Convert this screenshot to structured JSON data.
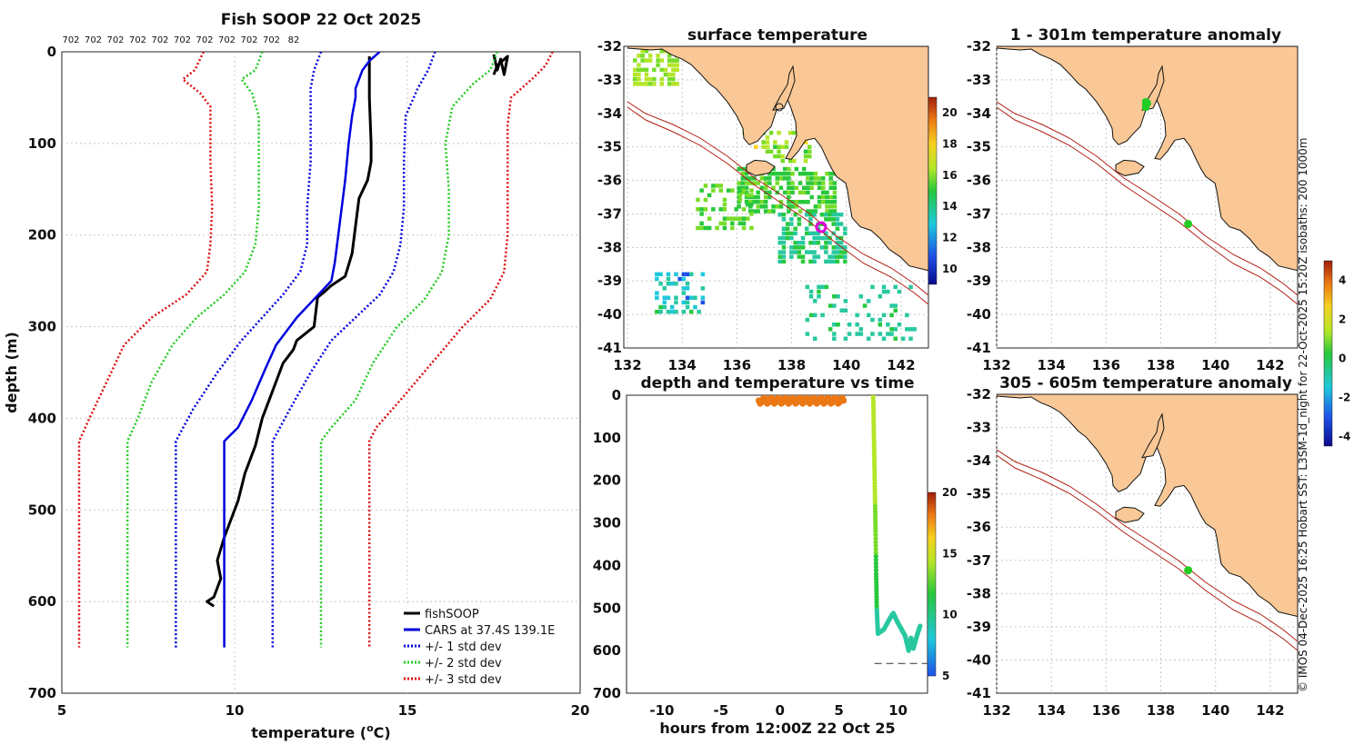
{
  "colors": {
    "fishsoop": "#000000",
    "cars": "#0000dd",
    "std1": "#0000dd",
    "std2": "#22cc22",
    "std3": "#dd1111",
    "land": "#f9c896",
    "isobath": "#b01c10",
    "marker_green": "#22cc22",
    "marker_magenta": "#dd00dd",
    "grid": "#c8c8c8"
  },
  "credit_text": "© IMOS 04-Dec-2025 16:25 Hobart SST: L3SM-1d_night for 22-Oct-2025 15:20Z isobaths: 200  1000m",
  "chart_data": [
    {
      "id": "profile",
      "type": "line",
      "title": "Fish SOOP 22 Oct 2025",
      "xlabel": "temperature (°C)",
      "xlabel_main": "temperature (",
      "xlabel_sup": "o",
      "xlabel_end": "C)",
      "ylabel": "depth (m)",
      "xlim": [
        5,
        20
      ],
      "ylim": [
        0,
        700
      ],
      "xticks": [
        5,
        10,
        15,
        20
      ],
      "yticks": [
        0,
        100,
        200,
        300,
        400,
        500,
        600,
        700
      ],
      "top_counts": [
        "702",
        "702",
        "702",
        "702",
        "702",
        "702",
        "702",
        "702",
        "702",
        "702",
        "82"
      ],
      "legend": [
        "fishSOOP",
        "CARS at 37.4S 139.1E",
        "+/- 1 std dev",
        "+/- 2 std dev",
        "+/- 3 std dev"
      ],
      "series": [
        {
          "name": "fishSOOP",
          "style": "solid",
          "color_key": "fishsoop",
          "width": 3,
          "points": [
            [
              13.9,
              5
            ],
            [
              13.9,
              50
            ],
            [
              13.95,
              100
            ],
            [
              13.95,
              120
            ],
            [
              13.85,
              140
            ],
            [
              13.6,
              160
            ],
            [
              13.5,
              190
            ],
            [
              13.4,
              220
            ],
            [
              13.2,
              245
            ],
            [
              12.8,
              255
            ],
            [
              12.6,
              262
            ],
            [
              12.4,
              268
            ],
            [
              12.3,
              300
            ],
            [
              11.8,
              315
            ],
            [
              11.7,
              325
            ],
            [
              11.4,
              340
            ],
            [
              11.2,
              360
            ],
            [
              11.0,
              380
            ],
            [
              10.8,
              400
            ],
            [
              10.6,
              430
            ],
            [
              10.3,
              460
            ],
            [
              10.1,
              490
            ],
            [
              9.9,
              510
            ],
            [
              9.7,
              530
            ],
            [
              9.5,
              555
            ],
            [
              9.6,
              575
            ],
            [
              9.4,
              595
            ],
            [
              9.2,
              600
            ],
            [
              9.4,
              605
            ]
          ]
        },
        {
          "name": "fishSOOP_surface",
          "style": "solid",
          "color_key": "fishsoop",
          "width": 3,
          "points": [
            [
              17.5,
              3
            ],
            [
              17.6,
              20
            ],
            [
              17.7,
              8
            ],
            [
              17.8,
              25
            ],
            [
              17.9,
              5
            ],
            [
              17.6,
              15
            ],
            [
              17.5,
              25
            ]
          ]
        },
        {
          "name": "CARS at 37.4S 139.1E",
          "style": "solid",
          "color_key": "cars",
          "width": 2.5,
          "points": [
            [
              14.2,
              0
            ],
            [
              13.9,
              10
            ],
            [
              13.7,
              20
            ],
            [
              13.6,
              30
            ],
            [
              13.5,
              40
            ],
            [
              13.5,
              50
            ],
            [
              13.4,
              70
            ],
            [
              13.3,
              100
            ],
            [
              13.2,
              140
            ],
            [
              13.1,
              170
            ],
            [
              13.0,
              200
            ],
            [
              12.9,
              230
            ],
            [
              12.8,
              250
            ],
            [
              12.3,
              270
            ],
            [
              11.8,
              290
            ],
            [
              11.5,
              305
            ],
            [
              11.2,
              320
            ],
            [
              10.9,
              345
            ],
            [
              10.5,
              380
            ],
            [
              10.1,
              410
            ],
            [
              9.7,
              425
            ],
            [
              9.7,
              500
            ],
            [
              9.7,
              650
            ]
          ]
        },
        {
          "name": "-1 std",
          "style": "dotted",
          "color_key": "std1",
          "width": 2.5,
          "points": [
            [
              12.5,
              0
            ],
            [
              12.3,
              20
            ],
            [
              12.2,
              40
            ],
            [
              12.2,
              70
            ],
            [
              12.2,
              120
            ],
            [
              12.1,
              170
            ],
            [
              12.1,
              210
            ],
            [
              11.9,
              240
            ],
            [
              11.4,
              265
            ],
            [
              10.8,
              290
            ],
            [
              10.2,
              315
            ],
            [
              9.5,
              350
            ],
            [
              8.8,
              390
            ],
            [
              8.3,
              425
            ],
            [
              8.3,
              650
            ]
          ]
        },
        {
          "name": "+1 std",
          "style": "dotted",
          "color_key": "std1",
          "width": 2.5,
          "points": [
            [
              15.8,
              0
            ],
            [
              15.6,
              20
            ],
            [
              15.3,
              40
            ],
            [
              14.95,
              70
            ],
            [
              14.9,
              120
            ],
            [
              14.9,
              170
            ],
            [
              14.8,
              210
            ],
            [
              14.6,
              240
            ],
            [
              14.2,
              265
            ],
            [
              13.5,
              290
            ],
            [
              12.8,
              315
            ],
            [
              12.2,
              350
            ],
            [
              11.6,
              390
            ],
            [
              11.1,
              425
            ],
            [
              11.1,
              650
            ]
          ]
        },
        {
          "name": "-2 std",
          "style": "dotted",
          "color_key": "std2",
          "width": 2.5,
          "points": [
            [
              10.8,
              0
            ],
            [
              10.6,
              20
            ],
            [
              10.2,
              30
            ],
            [
              10.5,
              45
            ],
            [
              10.7,
              70
            ],
            [
              10.7,
              120
            ],
            [
              10.7,
              170
            ],
            [
              10.6,
              210
            ],
            [
              10.3,
              240
            ],
            [
              9.7,
              265
            ],
            [
              8.9,
              290
            ],
            [
              8.2,
              320
            ],
            [
              7.6,
              360
            ],
            [
              7.2,
              400
            ],
            [
              6.9,
              425
            ],
            [
              6.9,
              650
            ]
          ]
        },
        {
          "name": "+2 std",
          "style": "dotted",
          "color_key": "std2",
          "width": 2.5,
          "points": [
            [
              17.6,
              0
            ],
            [
              17.4,
              20
            ],
            [
              16.9,
              35
            ],
            [
              16.3,
              60
            ],
            [
              16.1,
              100
            ],
            [
              16.2,
              150
            ],
            [
              16.2,
              200
            ],
            [
              16.0,
              240
            ],
            [
              15.5,
              270
            ],
            [
              14.7,
              300
            ],
            [
              14.0,
              340
            ],
            [
              13.5,
              380
            ],
            [
              12.8,
              410
            ],
            [
              12.5,
              425
            ],
            [
              12.5,
              650
            ]
          ]
        },
        {
          "name": "-3 std",
          "style": "dotted",
          "color_key": "std3",
          "width": 2.5,
          "points": [
            [
              9.1,
              0
            ],
            [
              8.85,
              20
            ],
            [
              8.5,
              30
            ],
            [
              9.0,
              45
            ],
            [
              9.3,
              60
            ],
            [
              9.3,
              120
            ],
            [
              9.35,
              170
            ],
            [
              9.3,
              210
            ],
            [
              9.2,
              240
            ],
            [
              8.6,
              265
            ],
            [
              7.6,
              290
            ],
            [
              6.8,
              320
            ],
            [
              6.3,
              360
            ],
            [
              5.8,
              400
            ],
            [
              5.5,
              425
            ],
            [
              5.5,
              650
            ]
          ]
        },
        {
          "name": "+3 std",
          "style": "dotted",
          "color_key": "std3",
          "width": 2.5,
          "points": [
            [
              19.2,
              0
            ],
            [
              19.0,
              15
            ],
            [
              18.6,
              30
            ],
            [
              18.0,
              50
            ],
            [
              17.9,
              80
            ],
            [
              17.9,
              150
            ],
            [
              17.9,
              200
            ],
            [
              17.8,
              240
            ],
            [
              17.4,
              270
            ],
            [
              16.6,
              300
            ],
            [
              15.7,
              340
            ],
            [
              14.8,
              380
            ],
            [
              14.1,
              410
            ],
            [
              13.9,
              425
            ],
            [
              13.9,
              650
            ]
          ]
        }
      ]
    },
    {
      "id": "sst_map",
      "type": "heatmap",
      "title": "surface temperature",
      "xlim": [
        132,
        143
      ],
      "ylim": [
        -41,
        -32
      ],
      "xticks": [
        132,
        134,
        136,
        138,
        140,
        142
      ],
      "yticks": [
        -32,
        -33,
        -34,
        -35,
        -36,
        -37,
        -38,
        -39,
        -40,
        -41
      ],
      "colorbar": {
        "min": 9,
        "max": 21,
        "ticks": [
          10,
          12,
          14,
          16,
          18,
          20
        ]
      },
      "marker_lonlat": [
        139.1,
        -37.4
      ]
    },
    {
      "id": "time_depth",
      "type": "scatter",
      "title": "depth and temperature vs time",
      "xlabel": "hours from 12:00Z 22 Oct 25",
      "xlim": [
        -13,
        12.5
      ],
      "ylim": [
        0,
        700
      ],
      "xticks": [
        -10,
        -5,
        0,
        5,
        10
      ],
      "yticks": [
        0,
        100,
        200,
        300,
        400,
        500,
        600,
        700
      ],
      "colorbar": {
        "min": 5,
        "max": 20,
        "ticks": [
          5,
          10,
          15,
          20
        ]
      },
      "surface_points": {
        "hours_start": -1.8,
        "hours_end": 5.5,
        "depth_min": 5,
        "depth_max": 20,
        "temp": 17.5
      },
      "descent": [
        [
          7.9,
          0,
          14.5
        ],
        [
          7.95,
          80,
          14.3
        ],
        [
          8.0,
          160,
          14.0
        ],
        [
          8.05,
          240,
          13.5
        ],
        [
          8.1,
          320,
          12.5
        ],
        [
          8.15,
          420,
          11.0
        ],
        [
          8.2,
          500,
          10.0
        ],
        [
          8.3,
          560,
          9.7
        ],
        [
          8.8,
          550,
          9.6
        ],
        [
          9.3,
          525,
          9.5
        ],
        [
          9.6,
          512,
          9.5
        ],
        [
          9.9,
          530,
          9.4
        ],
        [
          10.3,
          550,
          9.4
        ],
        [
          10.6,
          565,
          9.3
        ],
        [
          10.9,
          600,
          9.2
        ],
        [
          11.1,
          570,
          9.2
        ],
        [
          11.3,
          595,
          9.3
        ],
        [
          11.6,
          565,
          9.4
        ],
        [
          11.9,
          540,
          9.4
        ]
      ],
      "bottom_line_depth": 630
    },
    {
      "id": "anom_shallow",
      "type": "heatmap",
      "title": "1 - 301m temperature anomaly",
      "xlim": [
        132,
        143
      ],
      "ylim": [
        -41,
        -32
      ],
      "xticks": [
        132,
        134,
        136,
        138,
        140,
        142
      ],
      "yticks": [
        -32,
        -33,
        -34,
        -35,
        -36,
        -37,
        -38,
        -39,
        -40,
        -41
      ],
      "colorbar": {
        "min": -4.5,
        "max": 5,
        "ticks": [
          -4,
          -2,
          0,
          2,
          4
        ]
      },
      "markers_lonlat": [
        [
          137.5,
          -33.7
        ],
        [
          139.0,
          -37.3
        ]
      ]
    },
    {
      "id": "anom_deep",
      "type": "heatmap",
      "title": "305 - 605m temperature anomaly",
      "xlim": [
        132,
        143
      ],
      "ylim": [
        -41,
        -32
      ],
      "xticks": [
        132,
        134,
        136,
        138,
        140,
        142
      ],
      "yticks": [
        -32,
        -33,
        -34,
        -35,
        -36,
        -37,
        -38,
        -39,
        -40,
        -41
      ],
      "markers_lonlat": [
        [
          139.0,
          -37.3
        ]
      ]
    }
  ]
}
